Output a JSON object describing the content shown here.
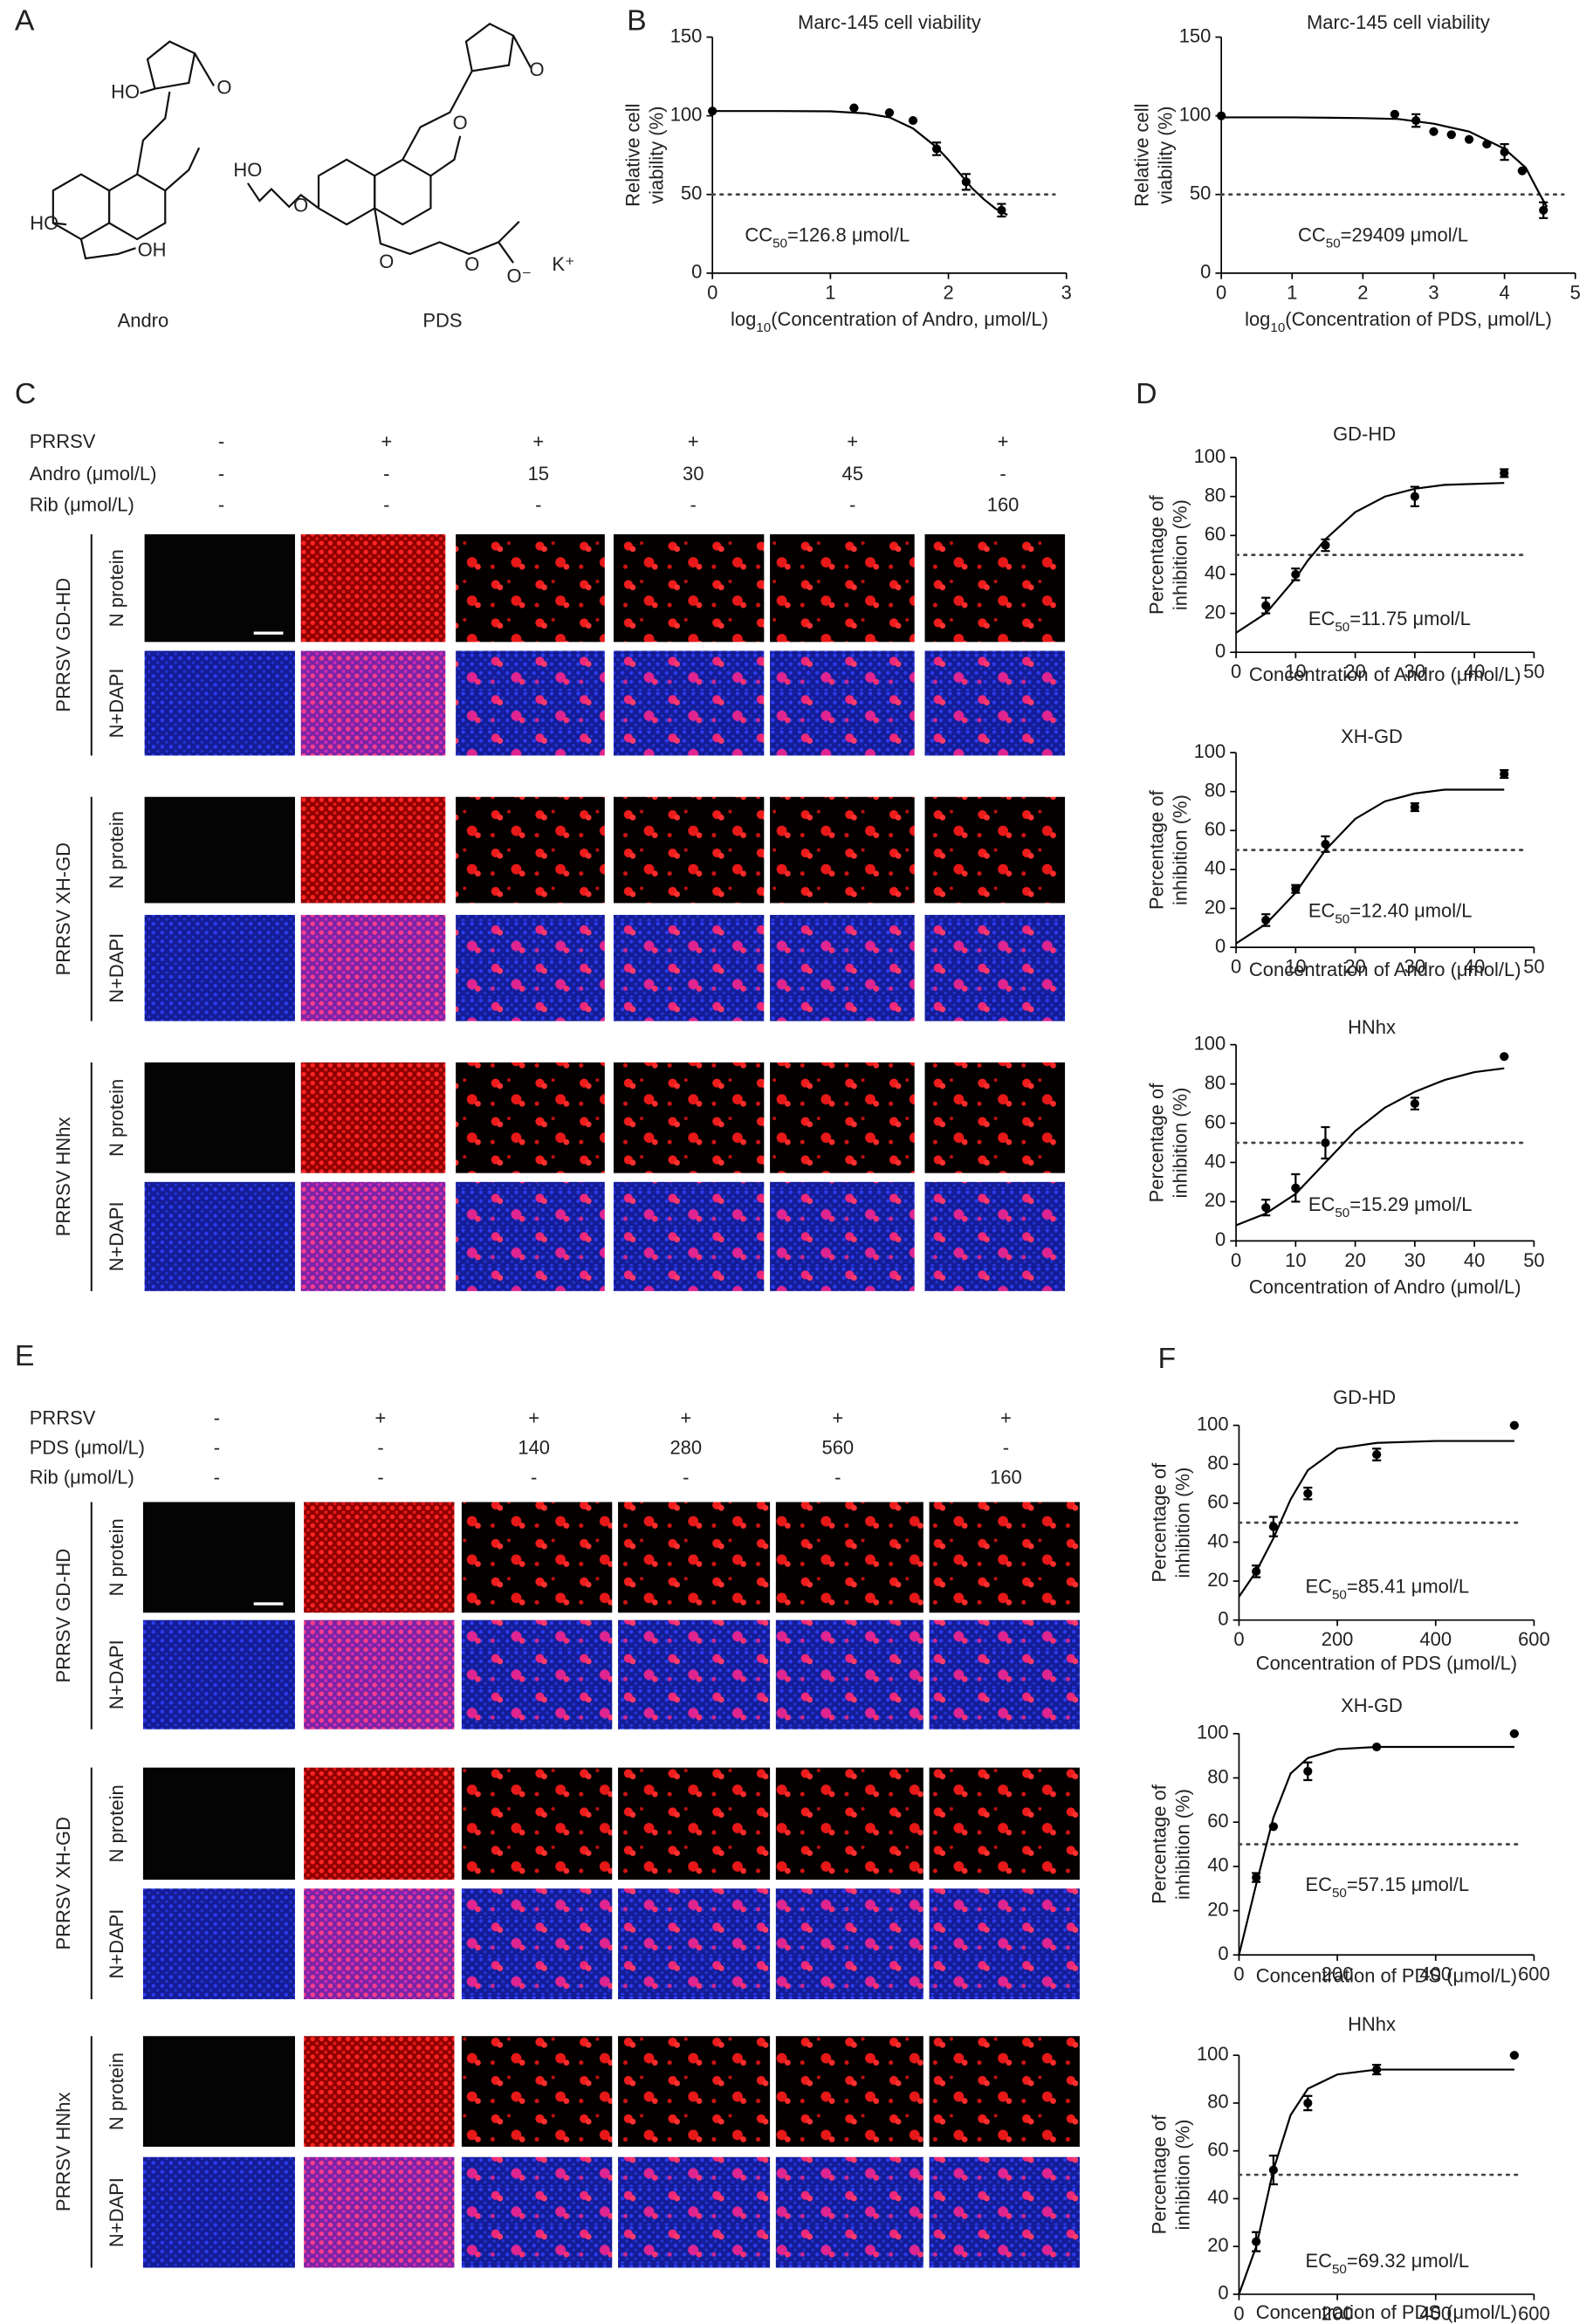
{
  "panel_labels": [
    "A",
    "B",
    "C",
    "D",
    "E",
    "F"
  ],
  "structures": [
    {
      "name": "Andro",
      "atoms": [
        "HO",
        "O",
        "HO",
        "OH"
      ]
    },
    {
      "name": "PDS",
      "atoms": [
        "O",
        "HO",
        "O",
        "O",
        "O",
        "O",
        "O⁻",
        "K⁺"
      ]
    }
  ],
  "panel_c": {
    "conditions": [
      {
        "label": "PRRSV",
        "values": [
          "-",
          "+",
          "+",
          "+",
          "+",
          "+"
        ]
      },
      {
        "label": "Andro (μmol/L)",
        "values": [
          "-",
          "-",
          "15",
          "30",
          "45",
          "-"
        ]
      },
      {
        "label": "Rib (μmol/L)",
        "values": [
          "-",
          "-",
          "-",
          "-",
          "-",
          "160"
        ]
      }
    ],
    "groups": [
      {
        "name": "PRRSV GD-HD",
        "rows": [
          "N protein",
          "N+DAPI"
        ]
      },
      {
        "name": "PRRSV XH-GD",
        "rows": [
          "N protein",
          "N+DAPI"
        ]
      },
      {
        "name": "PRRSV HNhx",
        "rows": [
          "N protein",
          "N+DAPI"
        ]
      }
    ]
  },
  "panel_e": {
    "conditions": [
      {
        "label": "PRRSV",
        "values": [
          "-",
          "+",
          "+",
          "+",
          "+",
          "+"
        ]
      },
      {
        "label": "PDS (μmol/L)",
        "values": [
          "-",
          "-",
          "140",
          "280",
          "560",
          "-"
        ]
      },
      {
        "label": "Rib (μmol/L)",
        "values": [
          "-",
          "-",
          "-",
          "-",
          "-",
          "160"
        ]
      }
    ],
    "groups": [
      {
        "name": "PRRSV GD-HD",
        "rows": [
          "N protein",
          "N+DAPI"
        ]
      },
      {
        "name": "PRRSV XH-GD",
        "rows": [
          "N protein",
          "N+DAPI"
        ]
      },
      {
        "name": "PRRSV HNhx",
        "rows": [
          "N protein",
          "N+DAPI"
        ]
      }
    ]
  },
  "chart_data": [
    {
      "type": "scatter",
      "title": "Marc-145 cell viability",
      "x_label": [
        "log",
        "10",
        "(Concentration of Andro, μmol/L)"
      ],
      "y_label": [
        "Relative cell",
        "viability (%)"
      ],
      "annotation": [
        "CC",
        "50",
        "=126.8 μmol/L"
      ],
      "color": "#000000",
      "xlim": [
        0,
        3
      ],
      "ylim": [
        0,
        150
      ],
      "xticks": [
        0,
        1,
        2,
        3
      ],
      "yticks": [
        0,
        50,
        100,
        150
      ],
      "ref_line": 50,
      "x": [
        0,
        1.2,
        1.5,
        1.7,
        1.9,
        2.15,
        2.45
      ],
      "values": [
        103,
        105,
        102,
        97,
        79,
        58,
        40
      ],
      "errors": [
        0,
        0,
        0,
        0,
        4,
        5,
        4
      ],
      "curve": {
        "x": [
          0,
          0.5,
          1,
          1.3,
          1.5,
          1.7,
          1.9,
          2.0,
          2.1,
          2.2,
          2.3,
          2.4,
          2.5
        ],
        "values": [
          103,
          103,
          102.8,
          101.5,
          99,
          92,
          80,
          72,
          63,
          54,
          47,
          41,
          37
        ]
      }
    },
    {
      "type": "scatter",
      "title": "Marc-145 cell viability",
      "x_label": [
        "log",
        "10",
        "(Concentration of PDS, μmol/L)"
      ],
      "y_label": [
        "Relative cell",
        "viability (%)"
      ],
      "annotation": [
        "CC",
        "50",
        "=29409 μmol/L"
      ],
      "color": "#000000",
      "xlim": [
        0,
        5
      ],
      "ylim": [
        0,
        150
      ],
      "xticks": [
        0,
        1,
        2,
        3,
        4,
        5
      ],
      "yticks": [
        0,
        50,
        100,
        150
      ],
      "ref_line": 50,
      "x": [
        0,
        2.45,
        2.75,
        3.0,
        3.25,
        3.5,
        3.75,
        4.0,
        4.25,
        4.55
      ],
      "values": [
        100,
        101,
        97,
        90,
        88,
        85,
        82,
        77,
        65,
        40
      ],
      "errors": [
        0,
        0,
        4,
        0,
        0,
        0,
        0,
        5,
        0,
        5
      ],
      "curve": {
        "x": [
          0,
          1,
          2,
          2.5,
          3,
          3.5,
          4,
          4.3,
          4.5,
          4.6
        ],
        "values": [
          99,
          99,
          98.5,
          98,
          95,
          90,
          79,
          67,
          50,
          42
        ]
      }
    },
    {
      "type": "scatter",
      "title": "GD-HD",
      "x_label": [
        "Concentration of Andro (μmol/L)"
      ],
      "y_label": [
        "Percentage of",
        "inhibition (%)"
      ],
      "annotation": [
        "EC",
        "50",
        "=11.75 μmol/L"
      ],
      "color": "#000000",
      "xlim": [
        0,
        50
      ],
      "ylim": [
        0,
        100
      ],
      "xticks": [
        0,
        10,
        20,
        30,
        40,
        50
      ],
      "yticks": [
        0,
        20,
        40,
        60,
        80,
        100
      ],
      "ref_line": 50,
      "x": [
        5,
        10,
        15,
        30,
        45
      ],
      "values": [
        24,
        40,
        55,
        80,
        92
      ],
      "errors": [
        4,
        3,
        3,
        5,
        2
      ],
      "curve": {
        "x": [
          0,
          5,
          10,
          12,
          15,
          20,
          25,
          30,
          35,
          45
        ],
        "values": [
          10,
          20,
          38,
          47,
          58,
          72,
          80,
          84,
          86,
          87
        ]
      }
    },
    {
      "type": "scatter",
      "title": "XH-GD",
      "x_label": [
        "Concentration of Andro (μmol/L)"
      ],
      "y_label": [
        "Percentage of",
        "inhibition (%)"
      ],
      "annotation": [
        "EC",
        "50",
        "=12.40 μmol/L"
      ],
      "color": "#000000",
      "xlim": [
        0,
        50
      ],
      "ylim": [
        0,
        100
      ],
      "xticks": [
        0,
        10,
        20,
        30,
        40,
        50
      ],
      "yticks": [
        0,
        20,
        40,
        60,
        80,
        100
      ],
      "ref_line": 50,
      "x": [
        5,
        10,
        15,
        30,
        45
      ],
      "values": [
        14,
        30,
        53,
        72,
        89
      ],
      "errors": [
        3,
        2,
        4,
        2,
        2
      ],
      "curve": {
        "x": [
          0,
          5,
          10,
          15,
          20,
          25,
          30,
          35,
          45
        ],
        "values": [
          2,
          12,
          28,
          50,
          66,
          75,
          79,
          81,
          81
        ]
      }
    },
    {
      "type": "scatter",
      "title": "HNhx",
      "x_label": [
        "Concentration of Andro (μmol/L)"
      ],
      "y_label": [
        "Percentage of",
        "inhibition (%)"
      ],
      "annotation": [
        "EC",
        "50",
        "=15.29 μmol/L"
      ],
      "color": "#000000",
      "xlim": [
        0,
        50
      ],
      "ylim": [
        0,
        100
      ],
      "xticks": [
        0,
        10,
        20,
        30,
        40,
        50
      ],
      "yticks": [
        0,
        20,
        40,
        60,
        80,
        100
      ],
      "ref_line": 50,
      "x": [
        5,
        10,
        15,
        30,
        45
      ],
      "values": [
        17,
        27,
        50,
        70,
        94
      ],
      "errors": [
        4,
        7,
        8,
        3,
        0
      ],
      "curve": {
        "x": [
          0,
          5,
          10,
          15,
          20,
          25,
          30,
          35,
          40,
          45
        ],
        "values": [
          8,
          14,
          24,
          40,
          56,
          68,
          76,
          82,
          86,
          88
        ]
      }
    },
    {
      "type": "scatter",
      "title": "GD-HD",
      "x_label": [
        "Concentration of PDS (μmol/L)"
      ],
      "y_label": [
        "Percentage of",
        "inhibition (%)"
      ],
      "annotation": [
        "EC",
        "50",
        "=85.41 μmol/L"
      ],
      "color": "#000000",
      "xlim": [
        0,
        600
      ],
      "ylim": [
        0,
        100
      ],
      "xticks": [
        0,
        200,
        400,
        600
      ],
      "yticks": [
        0,
        20,
        40,
        60,
        80,
        100
      ],
      "ref_line": 50,
      "x": [
        35,
        70,
        140,
        280,
        560
      ],
      "values": [
        25,
        48,
        65,
        85,
        100
      ],
      "errors": [
        3,
        5,
        3,
        3,
        0
      ],
      "curve": {
        "x": [
          0,
          35,
          70,
          105,
          140,
          200,
          280,
          400,
          560
        ],
        "values": [
          12,
          25,
          42,
          62,
          77,
          88,
          91,
          92,
          92
        ]
      }
    },
    {
      "type": "scatter",
      "title": "XH-GD",
      "x_label": [
        "Concentration of PDS (μmol/L)"
      ],
      "y_label": [
        "Percentage of",
        "inhibition (%)"
      ],
      "annotation": [
        "EC",
        "50",
        "=57.15 μmol/L"
      ],
      "color": "#000000",
      "xlim": [
        0,
        600
      ],
      "ylim": [
        0,
        100
      ],
      "xticks": [
        0,
        200,
        400,
        600
      ],
      "yticks": [
        0,
        20,
        40,
        60,
        80,
        100
      ],
      "ref_line": 50,
      "x": [
        35,
        70,
        140,
        280,
        560
      ],
      "values": [
        35,
        58,
        83,
        94,
        100
      ],
      "errors": [
        2,
        0,
        4,
        0,
        0
      ],
      "curve": {
        "x": [
          0,
          35,
          70,
          105,
          140,
          200,
          280,
          560
        ],
        "values": [
          0,
          32,
          62,
          82,
          89,
          93,
          94,
          94
        ]
      }
    },
    {
      "type": "scatter",
      "title": "HNhx",
      "x_label": [
        "Concentration of PDS (μmol/L)"
      ],
      "y_label": [
        "Percentage of",
        "inhibition (%)"
      ],
      "annotation": [
        "EC",
        "50",
        "=69.32 μmol/L"
      ],
      "color": "#000000",
      "xlim": [
        0,
        600
      ],
      "ylim": [
        0,
        100
      ],
      "xticks": [
        0,
        200,
        400,
        600
      ],
      "yticks": [
        0,
        20,
        40,
        60,
        80,
        100
      ],
      "ref_line": 50,
      "x": [
        35,
        70,
        140,
        280,
        560
      ],
      "values": [
        22,
        52,
        80,
        94,
        100
      ],
      "errors": [
        4,
        6,
        3,
        2,
        0
      ],
      "curve": {
        "x": [
          0,
          35,
          70,
          105,
          140,
          200,
          280,
          560
        ],
        "values": [
          0,
          20,
          52,
          75,
          86,
          92,
          94,
          94
        ]
      }
    }
  ]
}
